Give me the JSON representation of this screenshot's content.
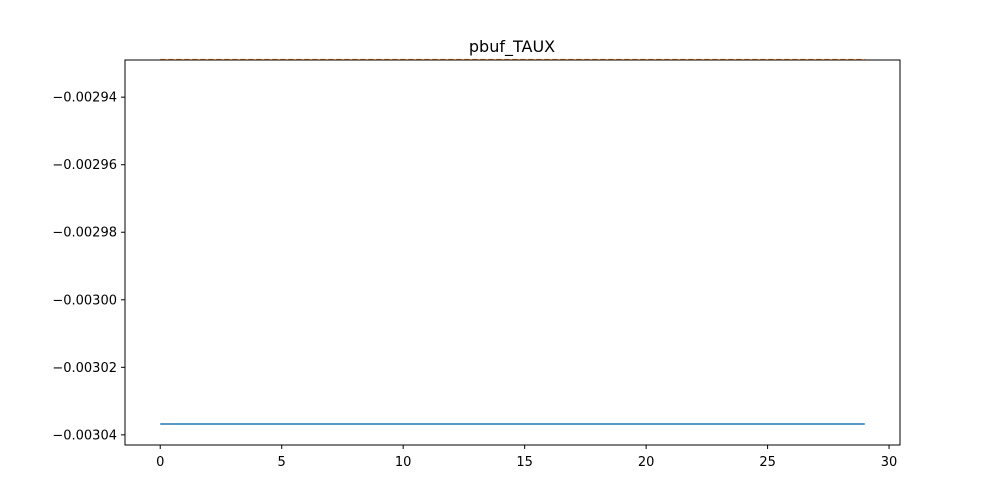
{
  "chart_data": {
    "type": "line",
    "title": "pbuf_TAUX",
    "xlabel": "",
    "ylabel": "",
    "xlim": [
      -1.45,
      30.45
    ],
    "ylim": [
      -0.003043,
      -0.002929
    ],
    "x_ticks": [
      0,
      5,
      10,
      15,
      20,
      25,
      30
    ],
    "x_tick_labels": [
      "0",
      "5",
      "10",
      "15",
      "20",
      "25",
      "30"
    ],
    "y_ticks": [
      -0.00294,
      -0.00296,
      -0.00298,
      -0.003,
      -0.00302,
      -0.00304
    ],
    "y_tick_labels": [
      "−0.00294",
      "−0.00296",
      "−0.00298",
      "−0.00300",
      "−0.00302",
      "−0.00304"
    ],
    "grid": false,
    "series": [
      {
        "color": "#1f77b4",
        "line_style": "solid",
        "x": [
          0,
          29
        ],
        "y": [
          -0.0030368,
          -0.0030368
        ]
      },
      {
        "color": "#ff7f0e",
        "line_style": "dashed",
        "x": [
          0,
          29
        ],
        "y": [
          -0.0029289,
          -0.0029289
        ]
      }
    ]
  }
}
